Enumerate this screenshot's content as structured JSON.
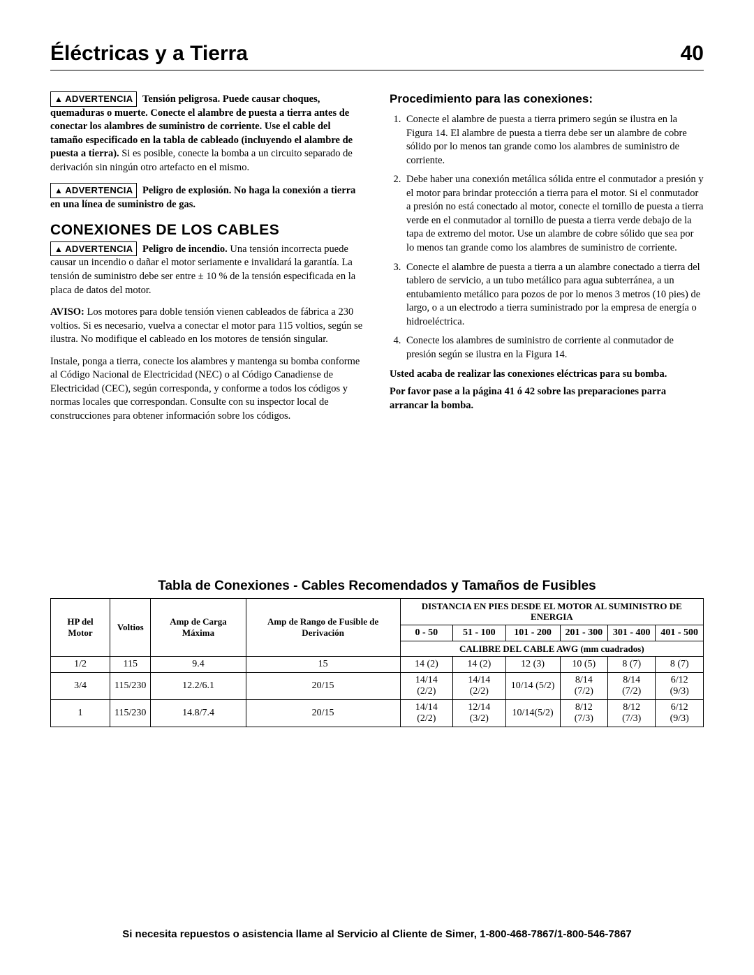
{
  "header": {
    "title": "Éléctricas y a Tierra",
    "page_number": "40"
  },
  "warn_label": "ADVERTENCIA",
  "left": {
    "w1_bold": "Tensión peligrosa. Puede causar choques, quemaduras o muerte. Conecte el alambre de puesta a tierra antes de conectar los alambres de suministro de corriente. Use el cable del tamaño especificado en la tabla de cableado (incluyendo el alambre de puesta a tierra).",
    "w1_rest": " Si es posible, conecte la bomba a un circuito separado de derivación sin ningún otro artefacto en el mismo.",
    "w2_bold": "Peligro de explosión. No haga la conexión a tierra en una línea de suministro de gas.",
    "h2": "CONEXIONES DE LOS CABLES",
    "w3_bold": "Peligro de incendio.",
    "w3_rest": " Una tensión incorrecta puede causar un incendio o dañar el motor seriamente e invalidará la garantía. La tensión de suministro debe ser entre ± 10 % de la tensión especificada en la placa de datos del motor.",
    "aviso_bold": "AVISO:",
    "aviso_rest": " Los motores para doble tensión vienen cableados de fábrica a 230 voltios. Si es necesario, vuelva a conectar el motor para 115 voltios, según se ilustra. No modifique el cableado en los motores de tensión singular.",
    "p_install": "Instale, ponga a tierra, conecte los alambres y mantenga su bomba conforme al Código Nacional de Electricidad (NEC) o al Código Canadiense de Electricidad (CEC), según corresponda, y conforme a todos los códigos y normas locales que correspondan. Consulte con su inspector local de construcciones para obtener información sobre los códigos."
  },
  "right": {
    "h": "Procedimiento para las conexiones:",
    "items": [
      "Conecte el alambre de puesta a tierra primero según se ilustra en la Figura 14. El alambre de puesta a tierra debe ser un alambre de cobre sólido por lo menos tan grande como los alambres de suministro de corriente.",
      "Debe haber una conexión metálica sólida entre el conmutador a presión y el motor para brindar protección a tierra para el motor. Si el conmutador a presión no está conectado al motor, conecte el tornillo de puesta a tierra verde en el conmutador al tornillo de puesta a tierra verde debajo de la tapa de extremo del motor. Use un alambre de cobre sólido que sea por lo menos tan grande como los alambres de suministro de corriente.",
      "Conecte el alambre de puesta a tierra a un alambre conectado a tierra del tablero de servicio, a un tubo metálico para agua subterránea, a un entubamiento metálico para pozos de por lo menos 3 metros (10 pies) de largo, o a un electrodo a tierra suministrado por la empresa de energía o hidroeléctrica.",
      "Conecte los alambres de suministro de corriente al conmutador de presión según se ilustra en la Figura 14."
    ],
    "note1": "Usted acaba de realizar las conexiones eléctricas para su bomba.",
    "note2": "Por favor pase a la página 41 ó 42 sobre las preparaciones parra arrancar la bomba."
  },
  "table": {
    "title": "Tabla de Conexiones - Cables Recomendados y Tamaños de Fusibles",
    "head": {
      "hp": "HP del Motor",
      "volt": "Voltios",
      "amp": "Amp de Carga Máxima",
      "fuse": "Amp de Rango de Fusible de Derivación",
      "dist": "DISTANCIA EN PIES DESDE EL MOTOR AL SUMINISTRO DE ENERGIA",
      "calibre": "CALIBRE DEL CABLE AWG (mm cuadrados)",
      "ranges": [
        "0 - 50",
        "51 - 100",
        "101 - 200",
        "201 - 300",
        "301 - 400",
        "401 - 500"
      ]
    },
    "rows": [
      {
        "hp": "1/2",
        "volt": "115",
        "amp": "9.4",
        "fuse": "15",
        "c": [
          "14 (2)",
          "14 (2)",
          "12 (3)",
          "10 (5)",
          "8 (7)",
          "8 (7)"
        ]
      },
      {
        "hp": "3/4",
        "volt": "115/230",
        "amp": "12.2/6.1",
        "fuse": "20/15",
        "c": [
          "14/14 (2/2)",
          "14/14 (2/2)",
          "10/14 (5/2)",
          "8/14 (7/2)",
          "8/14 (7/2)",
          "6/12 (9/3)"
        ]
      },
      {
        "hp": "1",
        "volt": "115/230",
        "amp": "14.8/7.4",
        "fuse": "20/15",
        "c": [
          "14/14 (2/2)",
          "12/14 (3/2)",
          "10/14(5/2)",
          "8/12 (7/3)",
          "8/12 (7/3)",
          "6/12 (9/3)"
        ]
      }
    ]
  },
  "footer": "Si necesita repuestos o asistencia llame al Servicio al Cliente de Simer, 1-800-468-7867/1-800-546-7867",
  "colors": {
    "text": "#000000",
    "bg": "#ffffff",
    "border": "#000000"
  }
}
